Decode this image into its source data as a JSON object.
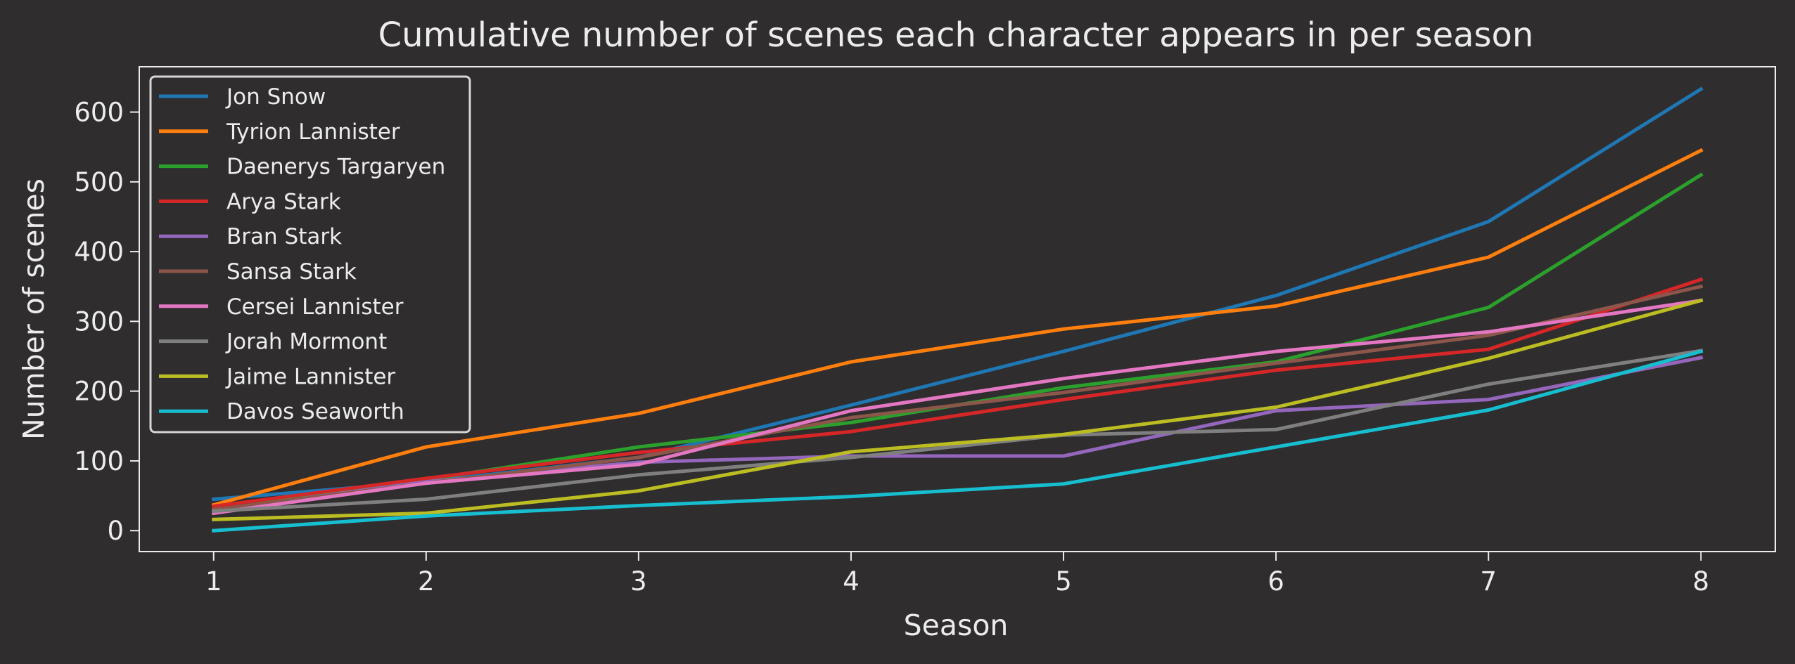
{
  "chart_data": {
    "type": "line",
    "title": "Cumulative number of scenes each character appears in per season",
    "xlabel": "Season",
    "ylabel": "Number of scenes",
    "x": [
      1,
      2,
      3,
      4,
      5,
      6,
      7,
      8
    ],
    "xlim": [
      0.65,
      8.35
    ],
    "ylim": [
      -30,
      665
    ],
    "xticks": [
      1,
      2,
      3,
      4,
      5,
      6,
      7,
      8
    ],
    "yticks": [
      0,
      100,
      200,
      300,
      400,
      500,
      600
    ],
    "grid": false,
    "legend_position": "upper-left",
    "series": [
      {
        "name": "Jon Snow",
        "color": "#1f77b4",
        "values": [
          45,
          70,
          105,
          180,
          257,
          337,
          443,
          633
        ]
      },
      {
        "name": "Tyrion Lannister",
        "color": "#ff7f0e",
        "values": [
          37,
          120,
          168,
          242,
          289,
          322,
          392,
          545
        ]
      },
      {
        "name": "Daenerys Targaryen",
        "color": "#2ca02c",
        "values": [
          29,
          73,
          120,
          155,
          205,
          242,
          320,
          510
        ]
      },
      {
        "name": "Arya Stark",
        "color": "#d62728",
        "values": [
          35,
          75,
          112,
          142,
          188,
          230,
          260,
          360
        ]
      },
      {
        "name": "Bran Stark",
        "color": "#9467bd",
        "values": [
          29,
          70,
          98,
          107,
          107,
          172,
          188,
          248
        ]
      },
      {
        "name": "Sansa Stark",
        "color": "#8c564b",
        "values": [
          30,
          68,
          105,
          162,
          198,
          240,
          280,
          350
        ]
      },
      {
        "name": "Cersei Lannister",
        "color": "#e377c2",
        "values": [
          25,
          68,
          95,
          172,
          218,
          257,
          285,
          330
        ]
      },
      {
        "name": "Jorah Mormont",
        "color": "#7f7f7f",
        "values": [
          28,
          45,
          80,
          105,
          137,
          145,
          210,
          258
        ]
      },
      {
        "name": "Jaime Lannister",
        "color": "#bcbd22",
        "values": [
          16,
          25,
          57,
          113,
          138,
          177,
          247,
          330
        ]
      },
      {
        "name": "Davos Seaworth",
        "color": "#17becf",
        "values": [
          0,
          21,
          36,
          49,
          67,
          120,
          173,
          257
        ]
      }
    ]
  }
}
